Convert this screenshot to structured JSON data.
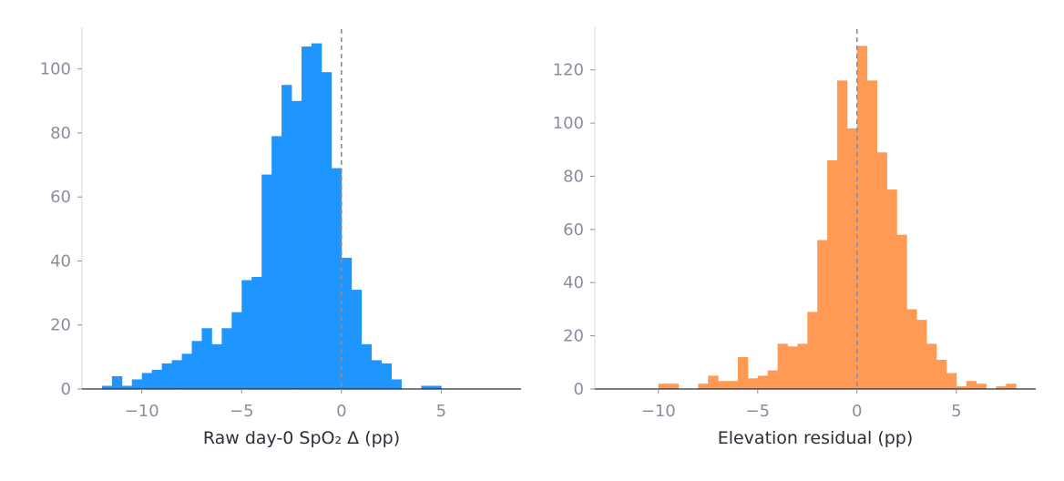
{
  "chart_data": [
    {
      "type": "bar",
      "subtype": "histogram",
      "color": "#1f96ff",
      "xlabel": "Raw day-0 SpO₂ Δ (pp)",
      "ylabel": "",
      "xlim": [
        -13,
        9
      ],
      "ylim": [
        0,
        113
      ],
      "x_ticks": [
        -10,
        -5,
        0,
        5
      ],
      "x_tick_labels": [
        "−10",
        "−5",
        "0",
        "5"
      ],
      "y_ticks": [
        0,
        20,
        40,
        60,
        80,
        100
      ],
      "y_tick_labels": [
        "0",
        "20",
        "40",
        "60",
        "80",
        "100"
      ],
      "reference_line": {
        "x": 0,
        "style": "dashed",
        "color": "#8c8c9e"
      },
      "bin_edges": [
        -12,
        -11.5,
        -11,
        -10.5,
        -10,
        -9.5,
        -9,
        -8.5,
        -8,
        -7.5,
        -7,
        -6.5,
        -6,
        -5.5,
        -5,
        -4.5,
        -4,
        -3.5,
        -3,
        -2.5,
        -2,
        -1.5,
        -1,
        -0.5,
        0,
        0.5,
        1,
        1.5,
        2,
        2.5,
        3,
        3.5,
        4,
        4.5,
        5
      ],
      "counts": [
        1,
        4,
        1,
        3,
        5,
        6,
        8,
        9,
        11,
        15,
        19,
        14,
        19,
        24,
        34,
        35,
        67,
        79,
        95,
        90,
        107,
        108,
        99,
        69,
        41,
        31,
        14,
        9,
        8,
        3,
        0,
        0,
        1,
        1
      ]
    },
    {
      "type": "bar",
      "subtype": "histogram",
      "color": "#ff9a55",
      "xlabel": "Elevation residual (pp)",
      "ylabel": "",
      "xlim": [
        -13.2,
        9
      ],
      "ylim": [
        0,
        136
      ],
      "x_ticks": [
        -10,
        -5,
        0,
        5
      ],
      "x_tick_labels": [
        "−10",
        "−5",
        "0",
        "5"
      ],
      "y_ticks": [
        0,
        20,
        40,
        60,
        80,
        100,
        120
      ],
      "y_tick_labels": [
        "0",
        "20",
        "40",
        "60",
        "80",
        "100",
        "120"
      ],
      "reference_line": {
        "x": 0,
        "style": "dashed",
        "color": "#8c8c9e"
      },
      "bin_edges": [
        -10,
        -9.5,
        -9,
        -8.5,
        -8,
        -7.5,
        -7,
        -6.5,
        -6,
        -5.5,
        -5,
        -4.5,
        -4,
        -3.5,
        -3,
        -2.5,
        -2,
        -1.5,
        -1,
        -0.5,
        0,
        0.5,
        1,
        1.5,
        2,
        2.5,
        3,
        3.5,
        4,
        4.5,
        5,
        5.5,
        6,
        6.5,
        7,
        7.5,
        8
      ],
      "counts": [
        2,
        2,
        0,
        0,
        2,
        5,
        3,
        3,
        12,
        4,
        5,
        7,
        17,
        16,
        17,
        29,
        56,
        86,
        116,
        98,
        129,
        116,
        89,
        75,
        58,
        30,
        26,
        17,
        11,
        6,
        1,
        3,
        2,
        0,
        1,
        2
      ]
    }
  ]
}
